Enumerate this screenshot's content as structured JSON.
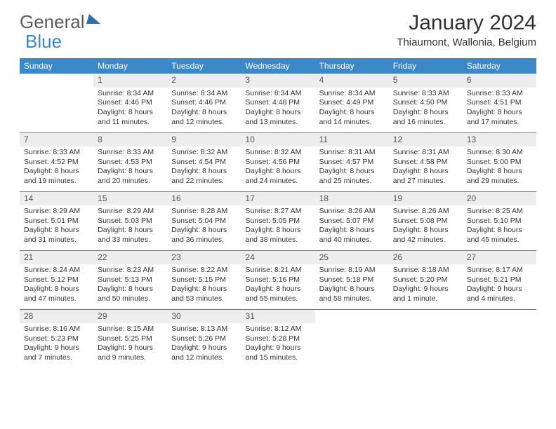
{
  "logo": {
    "text1": "General",
    "text2": "Blue"
  },
  "title": "January 2024",
  "location": "Thiaumont, Wallonia, Belgium",
  "colors": {
    "header_bg": "#3b87c8",
    "daynum_bg": "#ededed",
    "text": "#333333",
    "logo_gray": "#5b5b5b",
    "logo_blue": "#3b87c8"
  },
  "dayHeaders": [
    "Sunday",
    "Monday",
    "Tuesday",
    "Wednesday",
    "Thursday",
    "Friday",
    "Saturday"
  ],
  "weeks": [
    [
      {
        "num": "",
        "sunrise": "",
        "sunset": "",
        "daylight1": "",
        "daylight2": ""
      },
      {
        "num": "1",
        "sunrise": "Sunrise: 8:34 AM",
        "sunset": "Sunset: 4:46 PM",
        "daylight1": "Daylight: 8 hours",
        "daylight2": "and 11 minutes."
      },
      {
        "num": "2",
        "sunrise": "Sunrise: 8:34 AM",
        "sunset": "Sunset: 4:46 PM",
        "daylight1": "Daylight: 8 hours",
        "daylight2": "and 12 minutes."
      },
      {
        "num": "3",
        "sunrise": "Sunrise: 8:34 AM",
        "sunset": "Sunset: 4:48 PM",
        "daylight1": "Daylight: 8 hours",
        "daylight2": "and 13 minutes."
      },
      {
        "num": "4",
        "sunrise": "Sunrise: 8:34 AM",
        "sunset": "Sunset: 4:49 PM",
        "daylight1": "Daylight: 8 hours",
        "daylight2": "and 14 minutes."
      },
      {
        "num": "5",
        "sunrise": "Sunrise: 8:33 AM",
        "sunset": "Sunset: 4:50 PM",
        "daylight1": "Daylight: 8 hours",
        "daylight2": "and 16 minutes."
      },
      {
        "num": "6",
        "sunrise": "Sunrise: 8:33 AM",
        "sunset": "Sunset: 4:51 PM",
        "daylight1": "Daylight: 8 hours",
        "daylight2": "and 17 minutes."
      }
    ],
    [
      {
        "num": "7",
        "sunrise": "Sunrise: 8:33 AM",
        "sunset": "Sunset: 4:52 PM",
        "daylight1": "Daylight: 8 hours",
        "daylight2": "and 19 minutes."
      },
      {
        "num": "8",
        "sunrise": "Sunrise: 8:33 AM",
        "sunset": "Sunset: 4:53 PM",
        "daylight1": "Daylight: 8 hours",
        "daylight2": "and 20 minutes."
      },
      {
        "num": "9",
        "sunrise": "Sunrise: 8:32 AM",
        "sunset": "Sunset: 4:54 PM",
        "daylight1": "Daylight: 8 hours",
        "daylight2": "and 22 minutes."
      },
      {
        "num": "10",
        "sunrise": "Sunrise: 8:32 AM",
        "sunset": "Sunset: 4:56 PM",
        "daylight1": "Daylight: 8 hours",
        "daylight2": "and 24 minutes."
      },
      {
        "num": "11",
        "sunrise": "Sunrise: 8:31 AM",
        "sunset": "Sunset: 4:57 PM",
        "daylight1": "Daylight: 8 hours",
        "daylight2": "and 25 minutes."
      },
      {
        "num": "12",
        "sunrise": "Sunrise: 8:31 AM",
        "sunset": "Sunset: 4:58 PM",
        "daylight1": "Daylight: 8 hours",
        "daylight2": "and 27 minutes."
      },
      {
        "num": "13",
        "sunrise": "Sunrise: 8:30 AM",
        "sunset": "Sunset: 5:00 PM",
        "daylight1": "Daylight: 8 hours",
        "daylight2": "and 29 minutes."
      }
    ],
    [
      {
        "num": "14",
        "sunrise": "Sunrise: 8:29 AM",
        "sunset": "Sunset: 5:01 PM",
        "daylight1": "Daylight: 8 hours",
        "daylight2": "and 31 minutes."
      },
      {
        "num": "15",
        "sunrise": "Sunrise: 8:29 AM",
        "sunset": "Sunset: 5:03 PM",
        "daylight1": "Daylight: 8 hours",
        "daylight2": "and 33 minutes."
      },
      {
        "num": "16",
        "sunrise": "Sunrise: 8:28 AM",
        "sunset": "Sunset: 5:04 PM",
        "daylight1": "Daylight: 8 hours",
        "daylight2": "and 36 minutes."
      },
      {
        "num": "17",
        "sunrise": "Sunrise: 8:27 AM",
        "sunset": "Sunset: 5:05 PM",
        "daylight1": "Daylight: 8 hours",
        "daylight2": "and 38 minutes."
      },
      {
        "num": "18",
        "sunrise": "Sunrise: 8:26 AM",
        "sunset": "Sunset: 5:07 PM",
        "daylight1": "Daylight: 8 hours",
        "daylight2": "and 40 minutes."
      },
      {
        "num": "19",
        "sunrise": "Sunrise: 8:26 AM",
        "sunset": "Sunset: 5:08 PM",
        "daylight1": "Daylight: 8 hours",
        "daylight2": "and 42 minutes."
      },
      {
        "num": "20",
        "sunrise": "Sunrise: 8:25 AM",
        "sunset": "Sunset: 5:10 PM",
        "daylight1": "Daylight: 8 hours",
        "daylight2": "and 45 minutes."
      }
    ],
    [
      {
        "num": "21",
        "sunrise": "Sunrise: 8:24 AM",
        "sunset": "Sunset: 5:12 PM",
        "daylight1": "Daylight: 8 hours",
        "daylight2": "and 47 minutes."
      },
      {
        "num": "22",
        "sunrise": "Sunrise: 8:23 AM",
        "sunset": "Sunset: 5:13 PM",
        "daylight1": "Daylight: 8 hours",
        "daylight2": "and 50 minutes."
      },
      {
        "num": "23",
        "sunrise": "Sunrise: 8:22 AM",
        "sunset": "Sunset: 5:15 PM",
        "daylight1": "Daylight: 8 hours",
        "daylight2": "and 53 minutes."
      },
      {
        "num": "24",
        "sunrise": "Sunrise: 8:21 AM",
        "sunset": "Sunset: 5:16 PM",
        "daylight1": "Daylight: 8 hours",
        "daylight2": "and 55 minutes."
      },
      {
        "num": "25",
        "sunrise": "Sunrise: 8:19 AM",
        "sunset": "Sunset: 5:18 PM",
        "daylight1": "Daylight: 8 hours",
        "daylight2": "and 58 minutes."
      },
      {
        "num": "26",
        "sunrise": "Sunrise: 8:18 AM",
        "sunset": "Sunset: 5:20 PM",
        "daylight1": "Daylight: 9 hours",
        "daylight2": "and 1 minute."
      },
      {
        "num": "27",
        "sunrise": "Sunrise: 8:17 AM",
        "sunset": "Sunset: 5:21 PM",
        "daylight1": "Daylight: 9 hours",
        "daylight2": "and 4 minutes."
      }
    ],
    [
      {
        "num": "28",
        "sunrise": "Sunrise: 8:16 AM",
        "sunset": "Sunset: 5:23 PM",
        "daylight1": "Daylight: 9 hours",
        "daylight2": "and 7 minutes."
      },
      {
        "num": "29",
        "sunrise": "Sunrise: 8:15 AM",
        "sunset": "Sunset: 5:25 PM",
        "daylight1": "Daylight: 9 hours",
        "daylight2": "and 9 minutes."
      },
      {
        "num": "30",
        "sunrise": "Sunrise: 8:13 AM",
        "sunset": "Sunset: 5:26 PM",
        "daylight1": "Daylight: 9 hours",
        "daylight2": "and 12 minutes."
      },
      {
        "num": "31",
        "sunrise": "Sunrise: 8:12 AM",
        "sunset": "Sunset: 5:28 PM",
        "daylight1": "Daylight: 9 hours",
        "daylight2": "and 15 minutes."
      },
      {
        "num": "",
        "sunrise": "",
        "sunset": "",
        "daylight1": "",
        "daylight2": ""
      },
      {
        "num": "",
        "sunrise": "",
        "sunset": "",
        "daylight1": "",
        "daylight2": ""
      },
      {
        "num": "",
        "sunrise": "",
        "sunset": "",
        "daylight1": "",
        "daylight2": ""
      }
    ]
  ]
}
